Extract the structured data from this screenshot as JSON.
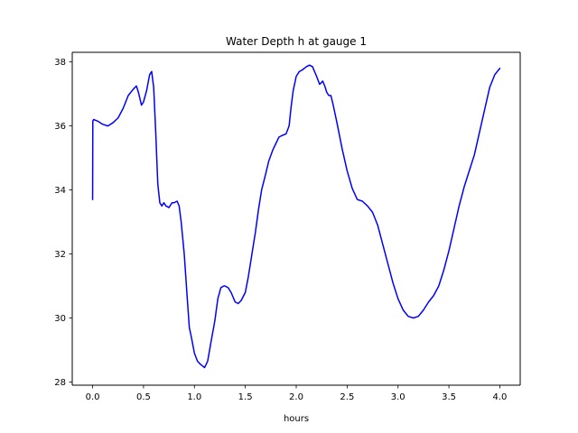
{
  "chart_data": {
    "type": "line",
    "title": "Water Depth h at gauge 1",
    "xlabel": "hours",
    "ylabel": "",
    "xlim": [
      -0.2,
      4.2
    ],
    "ylim": [
      27.9,
      38.3
    ],
    "grid": false,
    "xticks": [
      0.0,
      0.5,
      1.0,
      1.5,
      2.0,
      2.5,
      3.0,
      3.5,
      4.0
    ],
    "xtick_labels": [
      "0.0",
      "0.5",
      "1.0",
      "1.5",
      "2.0",
      "2.5",
      "3.0",
      "3.5",
      "4.0"
    ],
    "yticks": [
      28,
      30,
      32,
      34,
      36,
      38
    ],
    "ytick_labels": [
      "28",
      "30",
      "32",
      "34",
      "36",
      "38"
    ],
    "series": [
      {
        "color": "#0000ff",
        "x": [
          0.0,
          0.002,
          0.01,
          0.05,
          0.1,
          0.15,
          0.2,
          0.25,
          0.3,
          0.35,
          0.4,
          0.43,
          0.45,
          0.48,
          0.5,
          0.53,
          0.56,
          0.58,
          0.6,
          0.62,
          0.64,
          0.66,
          0.68,
          0.7,
          0.72,
          0.75,
          0.78,
          0.8,
          0.83,
          0.85,
          0.87,
          0.9,
          0.93,
          0.95,
          0.97,
          1.0,
          1.03,
          1.06,
          1.08,
          1.1,
          1.13,
          1.16,
          1.2,
          1.23,
          1.26,
          1.29,
          1.3,
          1.33,
          1.36,
          1.4,
          1.43,
          1.46,
          1.5,
          1.53,
          1.56,
          1.6,
          1.63,
          1.66,
          1.7,
          1.73,
          1.77,
          1.8,
          1.83,
          1.86,
          1.9,
          1.93,
          1.95,
          1.97,
          2.0,
          2.03,
          2.06,
          2.1,
          2.13,
          2.16,
          2.2,
          2.23,
          2.26,
          2.28,
          2.3,
          2.32,
          2.34,
          2.36,
          2.4,
          2.45,
          2.5,
          2.55,
          2.6,
          2.65,
          2.7,
          2.75,
          2.8,
          2.85,
          2.9,
          2.95,
          3.0,
          3.05,
          3.1,
          3.15,
          3.2,
          3.25,
          3.3,
          3.35,
          3.4,
          3.45,
          3.5,
          3.55,
          3.6,
          3.65,
          3.7,
          3.75,
          3.8,
          3.85,
          3.9,
          3.95,
          4.0
        ],
        "y": [
          33.7,
          36.15,
          36.2,
          36.15,
          36.05,
          36.0,
          36.1,
          36.25,
          36.55,
          36.95,
          37.15,
          37.25,
          37.05,
          36.65,
          36.75,
          37.1,
          37.6,
          37.7,
          37.2,
          35.8,
          34.2,
          33.6,
          33.5,
          33.6,
          33.5,
          33.45,
          33.6,
          33.6,
          33.65,
          33.5,
          33.0,
          32.0,
          30.6,
          29.7,
          29.4,
          28.9,
          28.65,
          28.55,
          28.5,
          28.45,
          28.65,
          29.2,
          29.9,
          30.6,
          30.95,
          31.0,
          31.0,
          30.95,
          30.8,
          30.5,
          30.45,
          30.55,
          30.8,
          31.3,
          31.9,
          32.7,
          33.4,
          34.0,
          34.5,
          34.9,
          35.25,
          35.45,
          35.65,
          35.7,
          35.75,
          36.0,
          36.6,
          37.1,
          37.55,
          37.7,
          37.75,
          37.85,
          37.9,
          37.85,
          37.55,
          37.3,
          37.4,
          37.25,
          37.05,
          36.95,
          36.95,
          36.7,
          36.1,
          35.3,
          34.6,
          34.05,
          33.7,
          33.65,
          33.5,
          33.3,
          32.9,
          32.3,
          31.7,
          31.1,
          30.6,
          30.25,
          30.05,
          30.0,
          30.05,
          30.25,
          30.5,
          30.7,
          31.0,
          31.5,
          32.1,
          32.8,
          33.5,
          34.1,
          34.6,
          35.1,
          35.8,
          36.5,
          37.2,
          37.6,
          37.8
        ]
      }
    ]
  }
}
